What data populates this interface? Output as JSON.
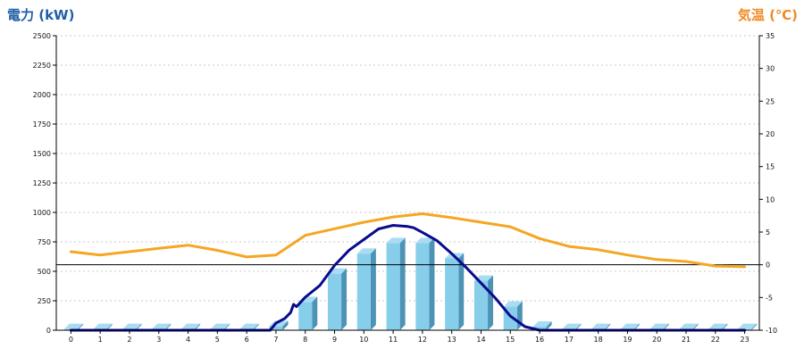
{
  "chart_data": {
    "type": "bar",
    "title": "",
    "categories": [
      "0",
      "1",
      "2",
      "3",
      "4",
      "5",
      "6",
      "7",
      "8",
      "9",
      "10",
      "11",
      "12",
      "13",
      "14",
      "15",
      "16",
      "17",
      "18",
      "19",
      "20",
      "21",
      "22",
      "23"
    ],
    "left_axis": {
      "label": "電力 (kW)",
      "ylim": [
        0,
        2500
      ],
      "ticks": [
        0,
        250,
        500,
        750,
        1000,
        1250,
        1500,
        1750,
        2000,
        2250,
        2500
      ],
      "grid": true
    },
    "right_axis": {
      "label": "気温 (℃)",
      "ylim": [
        -10,
        35
      ],
      "ticks": [
        -10,
        -5,
        0,
        5,
        10,
        15,
        20,
        25,
        30,
        35
      ]
    },
    "series": [
      {
        "type": "bar",
        "axis": "left",
        "values": [
          10,
          10,
          10,
          10,
          10,
          10,
          10,
          35,
          240,
          480,
          650,
          740,
          740,
          610,
          420,
          200,
          30,
          10,
          10,
          10,
          10,
          10,
          10,
          10
        ],
        "color": "#87ceeb"
      },
      {
        "type": "line",
        "axis": "left",
        "x": [
          0,
          1,
          2,
          3,
          4,
          5,
          6,
          6.8,
          7,
          7.3,
          7.5,
          7.6,
          7.7,
          8,
          8.5,
          9,
          9.5,
          10,
          10.5,
          11,
          11.5,
          11.7,
          12,
          12.5,
          13,
          13.5,
          14,
          14.5,
          15,
          15.5,
          16,
          17,
          18,
          19,
          20,
          21,
          22,
          23
        ],
        "y": [
          0,
          0,
          0,
          0,
          0,
          0,
          0,
          0,
          60,
          100,
          150,
          220,
          200,
          280,
          380,
          550,
          680,
          770,
          860,
          890,
          880,
          870,
          830,
          760,
          650,
          530,
          400,
          270,
          120,
          30,
          0,
          0,
          0,
          0,
          0,
          0,
          0,
          0
        ],
        "color": "#0a0a8c"
      },
      {
        "type": "line",
        "axis": "right",
        "x": [
          0,
          1,
          2,
          3,
          4,
          5,
          6,
          7,
          8,
          9,
          10,
          11,
          12,
          13,
          14,
          15,
          16,
          17,
          18,
          19,
          20,
          21,
          22,
          23
        ],
        "y": [
          2.0,
          1.5,
          2.0,
          2.5,
          3.0,
          2.2,
          1.2,
          1.5,
          4.5,
          5.5,
          6.5,
          7.3,
          7.8,
          7.2,
          6.5,
          5.8,
          4.0,
          2.8,
          2.3,
          1.5,
          0.8,
          0.5,
          -0.2,
          -0.3
        ],
        "color": "#f5a623"
      }
    ],
    "reference_line": {
      "axis": "right",
      "value": 0,
      "color": "#000000"
    }
  }
}
